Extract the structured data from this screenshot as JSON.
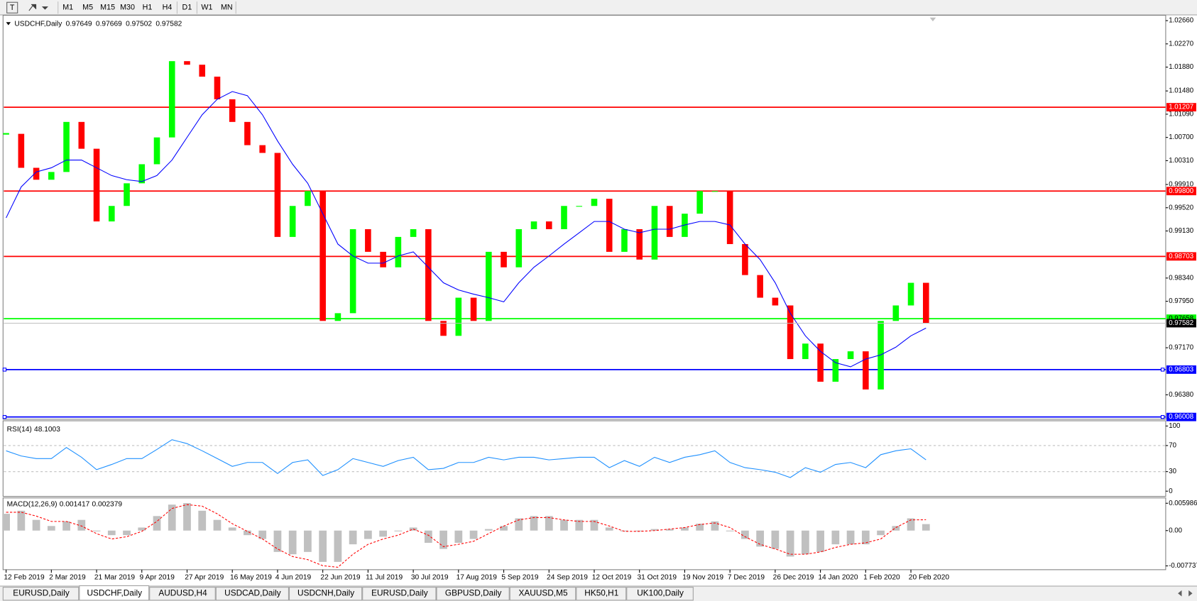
{
  "toolbar": {
    "timeframes": [
      "M1",
      "M5",
      "M15",
      "M30",
      "H1",
      "H4",
      "D1",
      "W1",
      "MN"
    ]
  },
  "tabs": [
    "EURUSD,Daily",
    "USDCHF,Daily",
    "AUDUSD,H4",
    "USDCAD,Daily",
    "USDCNH,Daily",
    "EURUSD,Daily",
    "GBPUSD,Daily",
    "XAUUSD,M5",
    "HK50,H1",
    "UK100,Daily"
  ],
  "active_tab": 1,
  "chart_data": [
    {
      "type": "candlestick",
      "title": "USDCHF,Daily",
      "ohlc": [
        0.97649,
        0.97669,
        0.97502,
        0.97582
      ],
      "up_color": "#00ff00",
      "down_color": "#ff0000",
      "categories": [
        "12 Feb 2019",
        null,
        null,
        "2 Mar 2019",
        null,
        null,
        "21 Mar 2019",
        null,
        null,
        "9 Apr 2019",
        null,
        null,
        "27 Apr 2019",
        null,
        null,
        "16 May 2019",
        null,
        null,
        "4 Jun 2019",
        null,
        null,
        "22 Jun 2019",
        null,
        null,
        "11 Jul 2019",
        null,
        null,
        "30 Jul 2019",
        null,
        null,
        "17 Aug 2019",
        null,
        null,
        "5 Sep 2019",
        null,
        null,
        "24 Sep 2019",
        null,
        null,
        "12 Oct 2019",
        null,
        null,
        "31 Oct 2019",
        null,
        null,
        "19 Nov 2019",
        null,
        null,
        "7 Dec 2019",
        null,
        null,
        "26 Dec 2019",
        null,
        null,
        "14 Jan 2020",
        null,
        null,
        "1 Feb 2020",
        null,
        null,
        "20 Feb 2020",
        null
      ],
      "close": [
        1.0076,
        1.0019,
        0.9999,
        1.0012,
        1.0096,
        1.0051,
        0.9929,
        0.9955,
        0.9993,
        1.0025,
        1.007,
        1.0198,
        1.0192,
        1.0172,
        1.0134,
        1.0096,
        1.0057,
        1.0044,
        0.9903,
        0.9955,
        0.998,
        0.9762,
        0.9775,
        0.9916,
        0.9878,
        0.9852,
        0.9903,
        0.9916,
        0.9762,
        0.9737,
        0.9801,
        0.9762,
        0.9878,
        0.9852,
        0.9916,
        0.9929,
        0.9916,
        0.9955,
        0.9955,
        0.9967,
        0.9878,
        0.9916,
        0.9865,
        0.9955,
        0.9903,
        0.9942,
        0.998,
        0.998,
        0.9891,
        0.9839,
        0.9801,
        0.9788,
        0.9698,
        0.9724,
        0.966,
        0.9698,
        0.9711,
        0.9647,
        0.9762,
        0.9788,
        0.9826,
        0.9758
      ],
      "series": [
        {
          "color": "#0000ff",
          "values": [
            0.9935,
            0.9987,
            1.0012,
            1.0019,
            1.0032,
            1.0032,
            1.0019,
            1.0006,
            0.9999,
            0.9996,
            1.0006,
            1.0032,
            1.007,
            1.0108,
            1.0134,
            1.0147,
            1.014,
            1.0108,
            1.0064,
            1.0025,
            0.9993,
            0.9942,
            0.9891,
            0.9871,
            0.9859,
            0.9859,
            0.9871,
            0.9878,
            0.9852,
            0.9826,
            0.9814,
            0.9807,
            0.9801,
            0.9794,
            0.9826,
            0.9852,
            0.9871,
            0.9891,
            0.991,
            0.9929,
            0.9929,
            0.9916,
            0.991,
            0.9916,
            0.9916,
            0.9923,
            0.9929,
            0.9929,
            0.9923,
            0.9891,
            0.9865,
            0.9826,
            0.9775,
            0.9737,
            0.9711,
            0.9692,
            0.9685,
            0.9698,
            0.9705,
            0.9718,
            0.9737,
            0.975
          ]
        }
      ],
      "levels": [
        {
          "value": 1.01207,
          "color": "#ff0000"
        },
        {
          "value": {
            "value": 0.998,
            "label": "0.99800"
          },
          "color": "#ff0000"
        },
        {
          "value": 0.98703,
          "color": "#ff0000"
        },
        {
          "value": 0.97658,
          "color": "#00ff00"
        },
        {
          "value": 0.96803,
          "color": "#0000ff"
        },
        {
          "value": 0.96008,
          "color": "#0000ff"
        }
      ],
      "ylim": [
        0.9597,
        1.0275
      ],
      "yticks": [
        {
          "value": 1.0266,
          "label": "1.02660"
        },
        {
          "value": 1.0227,
          "label": "1.02270"
        },
        {
          "value": 1.0188,
          "label": "1.01880"
        },
        {
          "value": 1.0148,
          "label": "1.01480"
        },
        {
          "value": 1.0109,
          "label": "1.01090"
        },
        {
          "value": 1.007,
          "label": "1.00700"
        },
        {
          "value": 1.0031,
          "label": "1.00310"
        },
        {
          "value": 0.9991,
          "label": "0.99910"
        },
        {
          "value": 0.9952,
          "label": "0.99520"
        },
        {
          "value": 0.9913,
          "label": "0.99130"
        },
        {
          "value": 0.9834,
          "label": "0.98340"
        },
        {
          "value": 0.9795,
          "label": "0.97950"
        },
        {
          "value": 0.9717,
          "label": "0.97170"
        },
        {
          "value": 0.9638,
          "label": "0.96380"
        }
      ]
    },
    {
      "type": "line",
      "title": "RSI(14)",
      "value": 48.1003,
      "color": "#1e90ff",
      "values": [
        62,
        54,
        50,
        50,
        67,
        52,
        33,
        41,
        50,
        50,
        64,
        79,
        73,
        62,
        50,
        38,
        44,
        44,
        27,
        44,
        48,
        24,
        33,
        50,
        44,
        38,
        47,
        52,
        33,
        35,
        44,
        44,
        52,
        48,
        52,
        52,
        48,
        50,
        52,
        52,
        36,
        47,
        38,
        52,
        44,
        52,
        56,
        62,
        44,
        36,
        33,
        29,
        21,
        36,
        29,
        41,
        44,
        36,
        56,
        62,
        65,
        48.1
      ],
      "levels": [
        70,
        30
      ],
      "ylim": [
        -8,
        108
      ],
      "yticks": [
        100,
        70,
        30,
        0
      ]
    },
    {
      "type": "macd",
      "title": "MACD(12,26,9)",
      "readout": [
        0.001417,
        0.002379
      ],
      "series": [
        {
          "color": "#c0c0c0",
          "values": [
            0.00368,
            0.00435,
            0.00234,
            0.001,
            0.00201,
            0.00234,
            -0.00017,
            -0.001,
            -0.001,
            0.00067,
            0.00318,
            0.00569,
            0.00602,
            0.00435,
            0.00234,
            0.00067,
            -0.001,
            -0.00184,
            -0.00468,
            -0.00519,
            -0.00468,
            -0.00686,
            -0.00686,
            -0.00301,
            -0.00184,
            -0.00134,
            -0.00017,
            0.00067,
            -0.00268,
            -0.00402,
            -0.00268,
            -0.00184,
            0.00033,
            0.001,
            0.00268,
            0.00318,
            0.00318,
            0.00234,
            0.00234,
            0.00234,
            0.00067,
            -0.00017,
            -0.00017,
            0.00033,
            0.00033,
            0.00067,
            0.00151,
            0.00201,
            -0.00017,
            -0.00184,
            -0.00351,
            -0.00402,
            -0.00569,
            -0.00519,
            -0.00468,
            -0.00301,
            -0.00301,
            -0.00301,
            -0.001,
            0.001,
            0.00268,
            0.001417
          ]
        },
        {
          "color": "#ff0000",
          "values": [
            0.00402,
            0.00402,
            0.00318,
            0.00201,
            0.00201,
            0.001,
            -0.00067,
            -0.00184,
            -0.00134,
            -0.00017,
            0.00201,
            0.00485,
            0.00569,
            0.00535,
            0.00368,
            0.00151,
            -0.00017,
            -0.00184,
            -0.00402,
            -0.00569,
            -0.00636,
            -0.0077,
            -0.00803,
            -0.00519,
            -0.00301,
            -0.00184,
            -0.001,
            0.00033,
            -0.001,
            -0.00351,
            -0.00301,
            -0.00234,
            -0.00067,
            0.001,
            0.00234,
            0.00284,
            0.00284,
            0.00234,
            0.00201,
            0.00201,
            0.001,
            -0.00017,
            -0.00017,
            0,
            0.00033,
            0.00067,
            0.00134,
            0.00167,
            0.00067,
            -0.00134,
            -0.00301,
            -0.00402,
            -0.00519,
            -0.00519,
            -0.00468,
            -0.00368,
            -0.00301,
            -0.00268,
            -0.00184,
            0.00067,
            0.00234,
            0.002379
          ]
        }
      ],
      "ylim": [
        -0.00857,
        0.00716
      ],
      "yticks": [
        0.005986,
        {
          "value": 0,
          "label": "0.00"
        },
        -0.007737
      ]
    }
  ]
}
